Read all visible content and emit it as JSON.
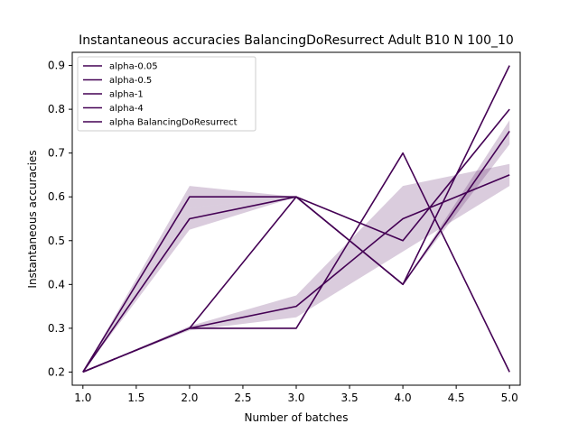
{
  "chart_data": {
    "type": "line",
    "title": "Instantaneous accuracies BalancingDoResurrect Adult B10 N 100_10",
    "xlabel": "Number of batches",
    "ylabel": "Instantaneous accuracies",
    "xlim": [
      0.9,
      5.1
    ],
    "ylim": [
      0.17,
      0.93
    ],
    "xticks": [
      1.0,
      1.5,
      2.0,
      2.5,
      3.0,
      3.5,
      4.0,
      4.5,
      5.0
    ],
    "xtick_labels": [
      "1.0",
      "1.5",
      "2.0",
      "2.5",
      "3.0",
      "3.5",
      "4.0",
      "4.5",
      "5.0"
    ],
    "yticks": [
      0.2,
      0.3,
      0.4,
      0.5,
      0.6,
      0.7,
      0.8,
      0.9
    ],
    "ytick_labels": [
      "0.2",
      "0.3",
      "0.4",
      "0.5",
      "0.6",
      "0.7",
      "0.8",
      "0.9"
    ],
    "grid": false,
    "legend_position": "top-left",
    "line_color": "#440154",
    "band_color": "#440154",
    "x": [
      1,
      2,
      3,
      4,
      5
    ],
    "series": [
      {
        "name": "alpha-0.05",
        "values": [
          0.2,
          0.6,
          0.6,
          0.4,
          0.9
        ],
        "band": [
          [
            0.2,
            0.2
          ],
          [
            0.575,
            0.625
          ],
          [
            0.6,
            0.6
          ],
          [
            0.4,
            0.4
          ],
          [
            0.9,
            0.9
          ]
        ]
      },
      {
        "name": "alpha-0.5",
        "values": [
          0.2,
          0.55,
          0.6,
          0.5,
          0.8
        ],
        "band": [
          [
            0.2,
            0.2
          ],
          [
            0.525,
            0.575
          ],
          [
            0.6,
            0.6
          ],
          [
            0.5,
            0.5
          ],
          [
            0.8,
            0.8
          ]
        ]
      },
      {
        "name": "alpha-1",
        "values": [
          0.2,
          0.3,
          0.6,
          0.4,
          0.75
        ],
        "band": [
          [
            0.2,
            0.2
          ],
          [
            0.3,
            0.3
          ],
          [
            0.6,
            0.6
          ],
          [
            0.4,
            0.4
          ],
          [
            0.72,
            0.775
          ]
        ]
      },
      {
        "name": "alpha-4",
        "values": [
          0.2,
          0.3,
          0.3,
          0.7,
          0.2
        ],
        "band": [
          [
            0.2,
            0.2
          ],
          [
            0.3,
            0.3
          ],
          [
            0.3,
            0.3
          ],
          [
            0.7,
            0.7
          ],
          [
            0.2,
            0.2
          ]
        ]
      },
      {
        "name": "alpha BalancingDoResurrect",
        "values": [
          0.2,
          0.3,
          0.35,
          0.55,
          0.65
        ],
        "band": [
          [
            0.2,
            0.2
          ],
          [
            0.295,
            0.305
          ],
          [
            0.325,
            0.375
          ],
          [
            0.475,
            0.625
          ],
          [
            0.625,
            0.675
          ]
        ]
      }
    ]
  }
}
